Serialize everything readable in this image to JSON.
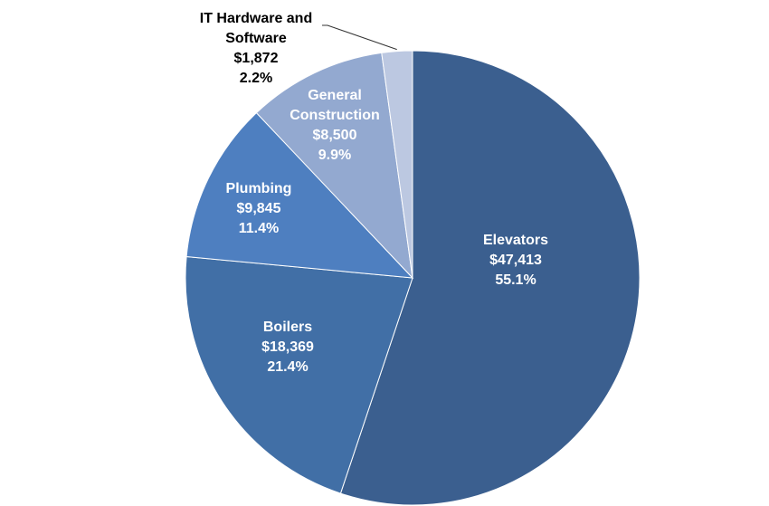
{
  "chart_data": {
    "type": "pie",
    "title": "",
    "start_angle_deg": 0,
    "direction": "clockwise",
    "slices": [
      {
        "name": "Elevators",
        "label_lines": [
          "Elevators"
        ],
        "value": 47413,
        "value_text": "$47,413",
        "percent_text": "55.1%",
        "color": "#3B5F8F",
        "label_color": "#ffffff"
      },
      {
        "name": "Boilers",
        "label_lines": [
          "Boilers"
        ],
        "value": 18369,
        "value_text": "$18,369",
        "percent_text": "21.4%",
        "color": "#416FA6",
        "label_color": "#ffffff"
      },
      {
        "name": "Plumbing",
        "label_lines": [
          "Plumbing"
        ],
        "value": 9845,
        "value_text": "$9,845",
        "percent_text": "11.4%",
        "color": "#4E7FC0",
        "label_color": "#ffffff"
      },
      {
        "name": "General Construction",
        "label_lines": [
          "General",
          "Construction"
        ],
        "value": 8500,
        "value_text": "$8,500",
        "percent_text": "9.9%",
        "color": "#93A9D0",
        "label_color": "#ffffff"
      },
      {
        "name": "IT Hardware and Software",
        "label_lines": [
          "IT Hardware and",
          "Software"
        ],
        "value": 1872,
        "value_text": "$1,872",
        "percent_text": "2.2%",
        "color": "#BCC8E1",
        "label_color": "#000000",
        "outside_label": true
      }
    ]
  }
}
